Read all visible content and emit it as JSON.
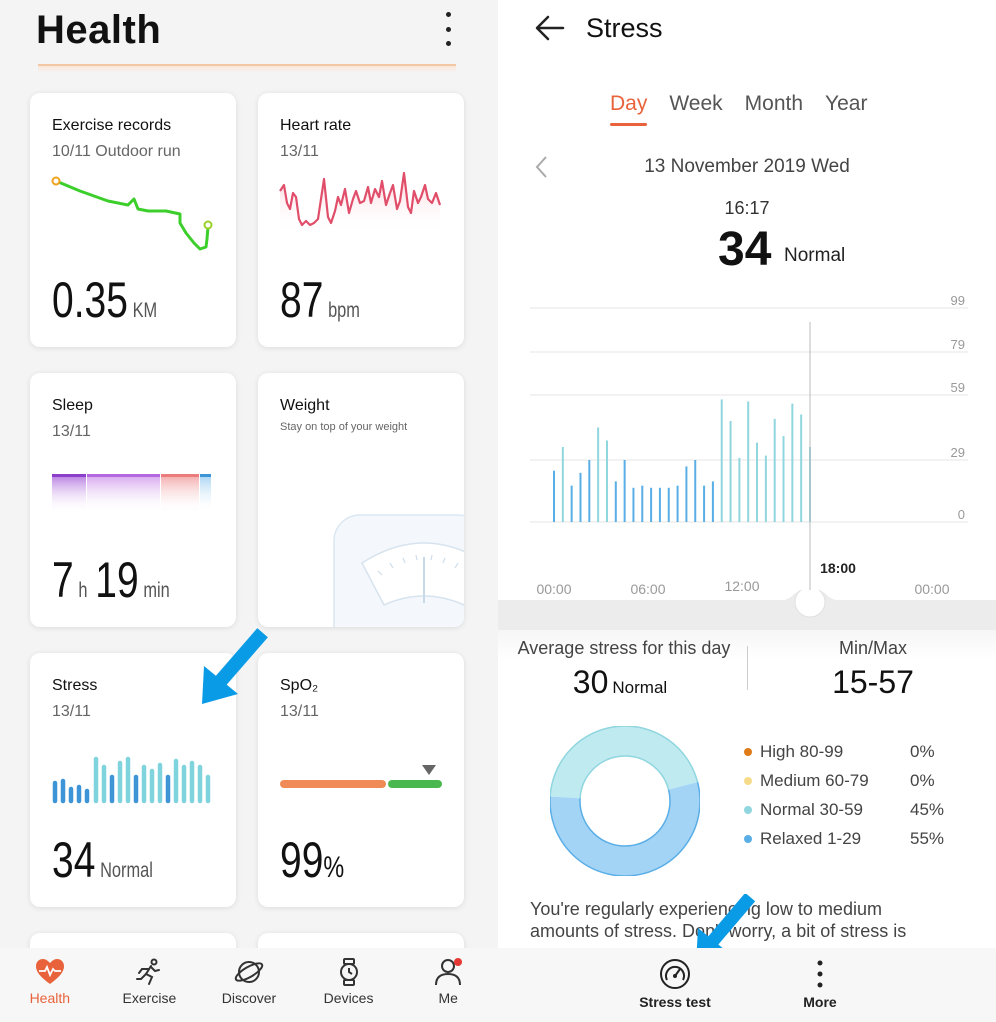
{
  "left": {
    "header": {
      "title": "Health"
    },
    "cards": {
      "exercise": {
        "title": "Exercise records",
        "subtitle": "10/11 Outdoor run",
        "value": "0.35",
        "unit": "KM"
      },
      "heart": {
        "title": "Heart rate",
        "subtitle": "13/11",
        "value": "87",
        "unit": "bpm"
      },
      "sleep": {
        "title": "Sleep",
        "subtitle": "13/11",
        "hours": "7",
        "h_unit": "h",
        "minutes": "19",
        "m_unit": "min"
      },
      "weight": {
        "title": "Weight",
        "subtitle": "Stay on top of your weight"
      },
      "stress": {
        "title": "Stress",
        "subtitle": "13/11",
        "value": "34",
        "unit": "Normal"
      },
      "spo2": {
        "title": "SpO₂",
        "subtitle": "13/11",
        "value": "99",
        "unit": "%"
      }
    },
    "nav": [
      {
        "label": "Health",
        "icon": "heart-icon",
        "active": true
      },
      {
        "label": "Exercise",
        "icon": "running-icon",
        "active": false
      },
      {
        "label": "Discover",
        "icon": "planet-icon",
        "active": false
      },
      {
        "label": "Devices",
        "icon": "watch-icon",
        "active": false
      },
      {
        "label": "Me",
        "icon": "person-icon",
        "active": false
      }
    ]
  },
  "right": {
    "header": {
      "title": "Stress"
    },
    "tabs": [
      "Day",
      "Week",
      "Month",
      "Year"
    ],
    "active_tab": "Day",
    "date": "13 November 2019 Wed",
    "selected": {
      "time": "16:17",
      "value": "34",
      "label": "Normal"
    },
    "chart_data": {
      "type": "bar",
      "y_ticks": [
        "99",
        "79",
        "59",
        "29",
        "0"
      ],
      "ylim": [
        0,
        99
      ],
      "x_ticks": [
        "00:00",
        "06:00",
        "12:00",
        "18:00",
        "00:00"
      ],
      "highlight_tick": "18:00",
      "values": [
        24,
        35,
        17,
        23,
        29,
        44,
        38,
        19,
        29,
        16,
        17,
        16,
        16,
        16,
        17,
        26,
        29,
        17,
        19,
        57,
        47,
        30,
        56,
        37,
        31,
        48,
        40,
        55,
        50,
        35
      ]
    },
    "summary": {
      "avg_label": "Average stress for this day",
      "avg_value": "30",
      "avg_unit": "Normal",
      "minmax_label": "Min/Max",
      "minmax_value": "15-57"
    },
    "distribution": [
      {
        "name": "High 80-99",
        "percent": "0%",
        "value": 0,
        "color": "#e07b1a"
      },
      {
        "name": "Medium 60-79",
        "percent": "0%",
        "value": 0,
        "color": "#f6dc8a"
      },
      {
        "name": "Normal 30-59",
        "percent": "45%",
        "value": 45,
        "color": "#8fd6df"
      },
      {
        "name": "Relaxed 1-29",
        "percent": "55%",
        "value": 55,
        "color": "#5aaee6"
      }
    ],
    "description": "You're regularly experiencing low to medium amounts of stress. Don't worry, a bit of stress is",
    "bottom_actions": [
      {
        "label": "Stress test",
        "icon": "gauge-icon"
      },
      {
        "label": "More",
        "icon": "more-vertical-icon"
      }
    ]
  },
  "colors": {
    "accent": "#e8633b",
    "arrow": "#0a9be6"
  }
}
